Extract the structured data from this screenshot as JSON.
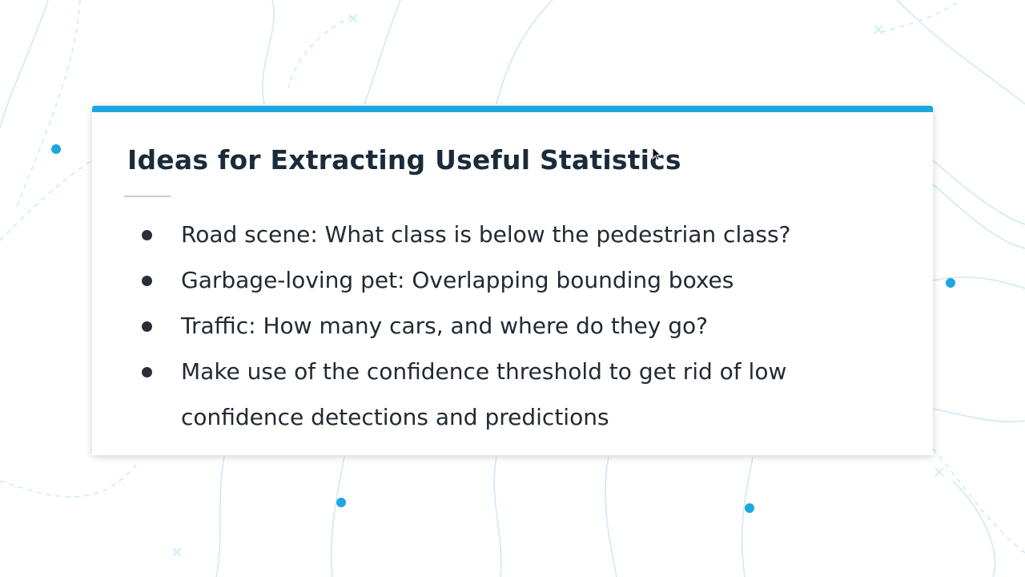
{
  "slide": {
    "title": "Ideas for Extracting Useful Statistics",
    "bullets": [
      {
        "text": "Road scene: What class is below the pedestrian class?"
      },
      {
        "text": "Garbage-loving pet: Overlapping bounding boxes"
      },
      {
        "text": "Traffic: How many cars, and where do they go?"
      },
      {
        "text": "Make use of the confidence threshold to get rid of low"
      },
      {
        "text": "confidence detections and predictions",
        "continuation": true
      }
    ]
  },
  "colors": {
    "accent": "#1ea7df",
    "background_lines": "#cfeaf6",
    "dots": "#1ea7df",
    "title": "#1b2b3a"
  },
  "icons": [
    "mouse-cursor-icon"
  ]
}
